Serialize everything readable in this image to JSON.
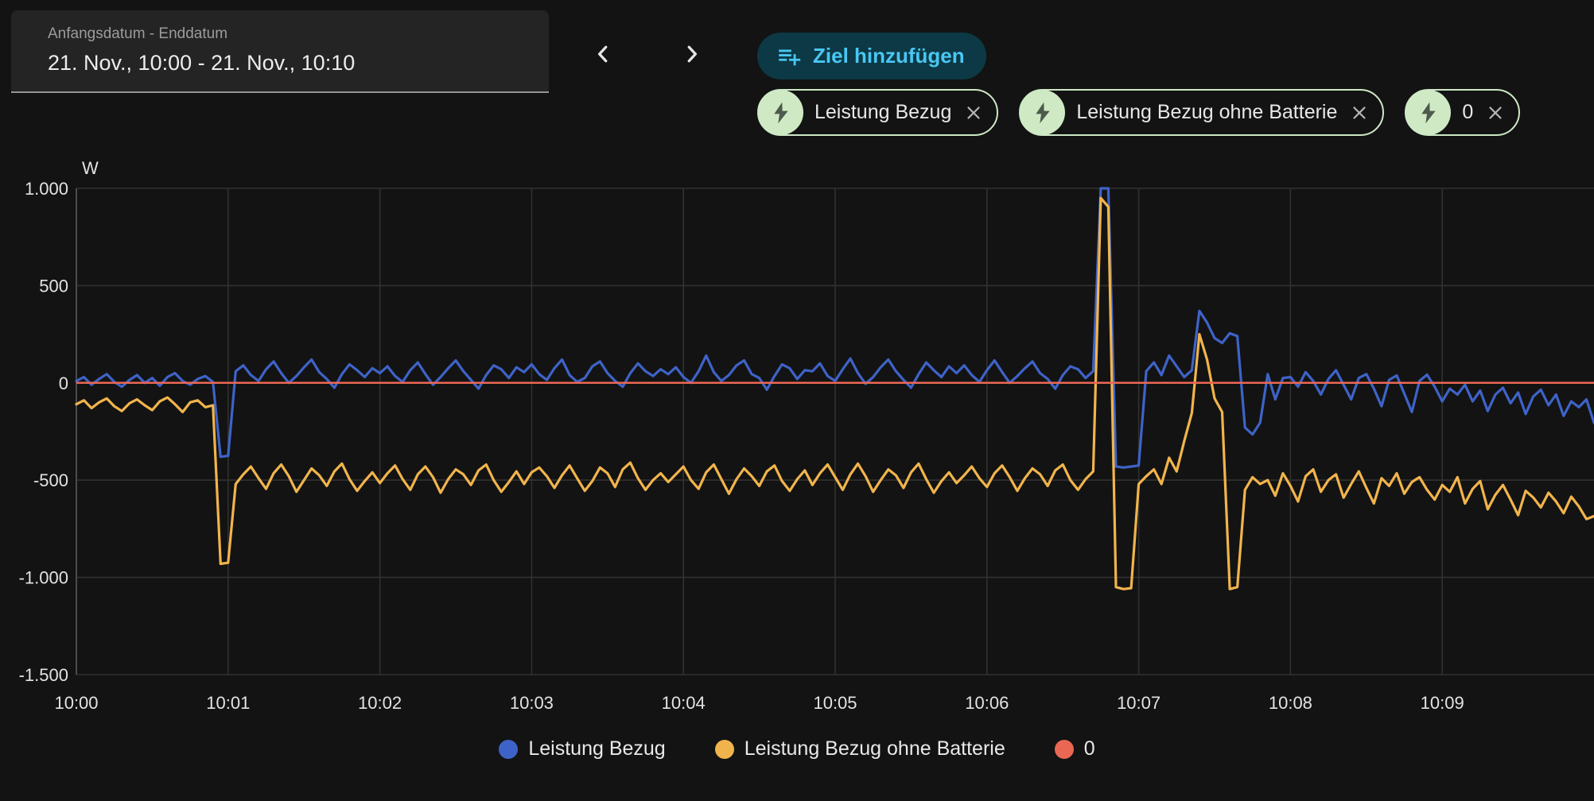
{
  "header": {
    "date_field": {
      "label": "Anfangsdatum - Enddatum",
      "value": "21. Nov., 10:00 - 21. Nov., 10:10"
    },
    "prev_button": {
      "icon": "chevron-left"
    },
    "next_button": {
      "icon": "chevron-right"
    },
    "add_goal_button": {
      "label": "Ziel hinzufügen",
      "icon": "playlist-add"
    }
  },
  "chips": [
    {
      "label": "Leistung Bezug",
      "icon": "bolt",
      "close": "close"
    },
    {
      "label": "Leistung Bezug ohne Batterie",
      "icon": "bolt",
      "close": "close"
    },
    {
      "label": "0",
      "icon": "bolt",
      "close": "close"
    }
  ],
  "colors": {
    "background": "#131313",
    "panel": "#242424",
    "button_teal": "#0c3945",
    "accent_blue": "#49c7f3",
    "chip_green": "#cfe9c5",
    "grid": "#313131",
    "axis_line": "#4b4b4b",
    "tick_text": "#e3e3e3",
    "series_blue": "#3e63c8",
    "series_yellow": "#f1b44c",
    "series_red": "#ea6753"
  },
  "chart_data": {
    "type": "line",
    "title": "",
    "xlabel": "",
    "ylabel": "W",
    "ylim": [
      -1500,
      1000
    ],
    "x_range_seconds": [
      0,
      600
    ],
    "sample_interval_seconds": 3,
    "grid": true,
    "legend_position": "bottom",
    "y_ticks": [
      {
        "label": "1.000",
        "value": 1000
      },
      {
        "label": "500",
        "value": 500
      },
      {
        "label": "0",
        "value": 0
      },
      {
        "label": "-500",
        "value": -500
      },
      {
        "label": "-1.000",
        "value": -1000
      },
      {
        "label": "-1.500",
        "value": -1500
      }
    ],
    "x_ticks": [
      {
        "label": "10:00",
        "t": 0
      },
      {
        "label": "10:01",
        "t": 60
      },
      {
        "label": "10:02",
        "t": 120
      },
      {
        "label": "10:03",
        "t": 180
      },
      {
        "label": "10:04",
        "t": 240
      },
      {
        "label": "10:05",
        "t": 300
      },
      {
        "label": "10:06",
        "t": 360
      },
      {
        "label": "10:07",
        "t": 420
      },
      {
        "label": "10:08",
        "t": 480
      },
      {
        "label": "10:09",
        "t": 540
      }
    ],
    "series": [
      {
        "name": "Leistung Bezug",
        "color": "#3e63c8",
        "values": [
          10,
          30,
          -10,
          20,
          45,
          5,
          -20,
          15,
          40,
          0,
          25,
          -15,
          30,
          50,
          10,
          -10,
          20,
          35,
          5,
          -380,
          -375,
          60,
          90,
          40,
          10,
          70,
          110,
          50,
          0,
          35,
          80,
          120,
          55,
          20,
          -25,
          45,
          95,
          65,
          30,
          75,
          50,
          85,
          35,
          5,
          65,
          105,
          45,
          -10,
          30,
          75,
          115,
          60,
          15,
          -30,
          40,
          90,
          70,
          25,
          80,
          55,
          95,
          45,
          15,
          75,
          120,
          40,
          5,
          25,
          85,
          110,
          50,
          10,
          -20,
          50,
          100,
          60,
          35,
          70,
          45,
          80,
          30,
          0,
          60,
          140,
          55,
          10,
          40,
          90,
          115,
          45,
          25,
          -35,
          35,
          95,
          75,
          20,
          65,
          60,
          100,
          35,
          10,
          70,
          125,
          50,
          -5,
          30,
          80,
          120,
          60,
          15,
          -25,
          45,
          105,
          65,
          30,
          85,
          50,
          90,
          40,
          5,
          65,
          115,
          55,
          0,
          35,
          75,
          110,
          50,
          20,
          -30,
          40,
          85,
          70,
          25,
          60,
          1000,
          1000,
          -430,
          -435,
          -430,
          -425,
          60,
          105,
          40,
          140,
          85,
          30,
          65,
          370,
          310,
          230,
          205,
          255,
          240,
          -230,
          -265,
          -205,
          45,
          -85,
          25,
          30,
          -20,
          55,
          10,
          -60,
          20,
          65,
          -10,
          -85,
          25,
          45,
          -30,
          -120,
          15,
          38,
          -55,
          -150,
          10,
          42,
          -20,
          -95,
          -30,
          -60,
          -10,
          -95,
          -40,
          -145,
          -60,
          -25,
          -105,
          -50,
          -160,
          -70,
          -35,
          -115,
          -60,
          -170,
          -95,
          -125,
          -85,
          -205
        ]
      },
      {
        "name": "Leistung Bezug ohne Batterie",
        "color": "#f1b44c",
        "values": [
          -110,
          -90,
          -130,
          -100,
          -80,
          -120,
          -145,
          -105,
          -85,
          -115,
          -140,
          -95,
          -75,
          -110,
          -150,
          -100,
          -90,
          -125,
          -115,
          -930,
          -925,
          -520,
          -470,
          -430,
          -490,
          -545,
          -465,
          -420,
          -480,
          -560,
          -500,
          -440,
          -475,
          -530,
          -455,
          -415,
          -495,
          -555,
          -505,
          -460,
          -515,
          -465,
          -425,
          -495,
          -550,
          -470,
          -430,
          -485,
          -565,
          -495,
          -445,
          -470,
          -525,
          -450,
          -420,
          -500,
          -560,
          -510,
          -455,
          -520,
          -460,
          -435,
          -480,
          -540,
          -475,
          -425,
          -490,
          -555,
          -505,
          -435,
          -465,
          -535,
          -445,
          -410,
          -490,
          -550,
          -500,
          -465,
          -510,
          -470,
          -430,
          -500,
          -545,
          -460,
          -420,
          -495,
          -570,
          -495,
          -440,
          -480,
          -530,
          -455,
          -425,
          -505,
          -555,
          -495,
          -450,
          -525,
          -465,
          -420,
          -485,
          -550,
          -470,
          -415,
          -480,
          -560,
          -500,
          -445,
          -475,
          -540,
          -460,
          -415,
          -495,
          -565,
          -505,
          -460,
          -515,
          -475,
          -430,
          -490,
          -535,
          -465,
          -425,
          -485,
          -555,
          -490,
          -440,
          -470,
          -530,
          -450,
          -420,
          -500,
          -550,
          -495,
          -455,
          950,
          905,
          -1050,
          -1060,
          -1055,
          -520,
          -480,
          -445,
          -520,
          -385,
          -455,
          -300,
          -155,
          250,
          120,
          -80,
          -150,
          -1060,
          -1050,
          -550,
          -485,
          -520,
          -500,
          -580,
          -465,
          -530,
          -610,
          -480,
          -445,
          -560,
          -500,
          -470,
          -590,
          -520,
          -455,
          -540,
          -620,
          -490,
          -530,
          -465,
          -570,
          -510,
          -485,
          -550,
          -600,
          -525,
          -560,
          -485,
          -620,
          -545,
          -505,
          -650,
          -575,
          -525,
          -600,
          -680,
          -555,
          -590,
          -640,
          -565,
          -610,
          -670,
          -585,
          -635,
          -700,
          -685
        ]
      },
      {
        "name": "0",
        "color": "#ea6753",
        "constant": 0
      }
    ]
  }
}
